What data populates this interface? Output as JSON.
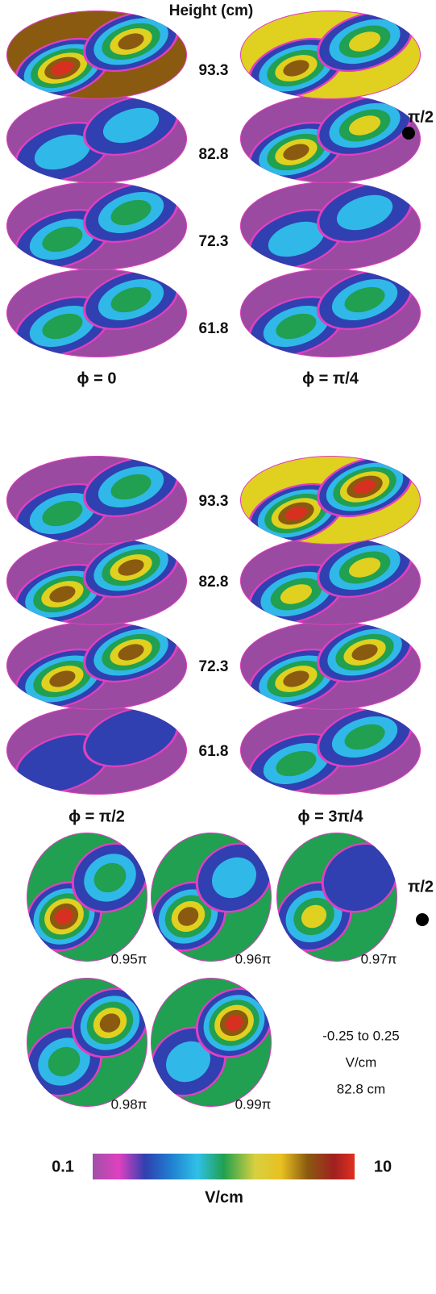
{
  "header": {
    "title": "Height (cm)"
  },
  "top": {
    "heights": [
      "93.3",
      "82.8",
      "72.3",
      "61.8"
    ],
    "phases": [
      "ϕ = 0",
      "ϕ = π/4"
    ]
  },
  "bottom": {
    "heights": [
      "93.3",
      "82.8",
      "72.3",
      "61.8"
    ],
    "phases": [
      "ϕ = π/2",
      "ϕ = 3π/4"
    ]
  },
  "marker": "π/2",
  "sweep": {
    "marker": "π/2",
    "phases": [
      "0.95π",
      "0.96π",
      "0.97π",
      "0.98π",
      "0.99π"
    ],
    "note": [
      "-0.25 to 0.25",
      "V/cm",
      "82.8 cm"
    ]
  },
  "colorbar": {
    "min": "0.1",
    "max": "10",
    "unit": "V/cm"
  }
}
